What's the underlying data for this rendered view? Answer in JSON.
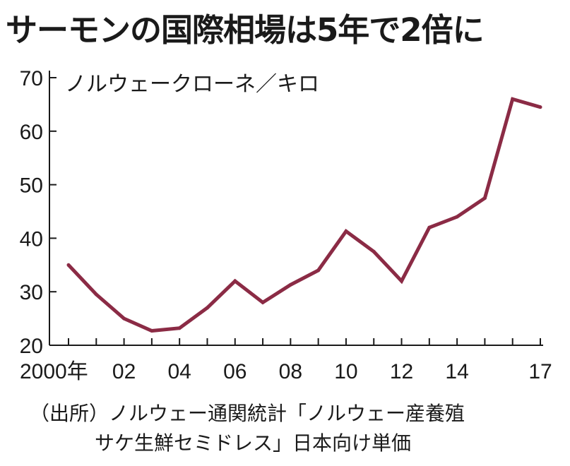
{
  "header": {
    "title": "サーモンの国際相場は5年で2倍に"
  },
  "chart_data": {
    "type": "line",
    "unit_label": "ノルウェークローネ／キロ",
    "x": [
      2000,
      2001,
      2002,
      2003,
      2004,
      2005,
      2006,
      2007,
      2008,
      2009,
      2010,
      2011,
      2012,
      2013,
      2014,
      2015,
      2016,
      2017
    ],
    "x_tick_labels": [
      {
        "x": 2000,
        "label": "2000年"
      },
      {
        "x": 2002,
        "label": "02"
      },
      {
        "x": 2004,
        "label": "04"
      },
      {
        "x": 2006,
        "label": "06"
      },
      {
        "x": 2008,
        "label": "08"
      },
      {
        "x": 2010,
        "label": "10"
      },
      {
        "x": 2012,
        "label": "12"
      },
      {
        "x": 2014,
        "label": "14"
      },
      {
        "x": 2017,
        "label": "17"
      }
    ],
    "y_ticks": [
      20,
      30,
      40,
      50,
      60,
      70
    ],
    "ylim": [
      20,
      70
    ],
    "series": [
      {
        "values": [
          35,
          29.5,
          25,
          22.7,
          23.2,
          27,
          32,
          28,
          31.3,
          34,
          41.3,
          37.5,
          32,
          42,
          44,
          47.5,
          66,
          64.5
        ]
      }
    ],
    "colors": {
      "line": "#8b2b45",
      "axis": "#1a1a1a"
    },
    "grid": false
  },
  "source": {
    "line1": "（出所）ノルウェー通関統計「ノルウェー産養殖",
    "line2": "サケ生鮮セミドレス」日本向け単価"
  }
}
